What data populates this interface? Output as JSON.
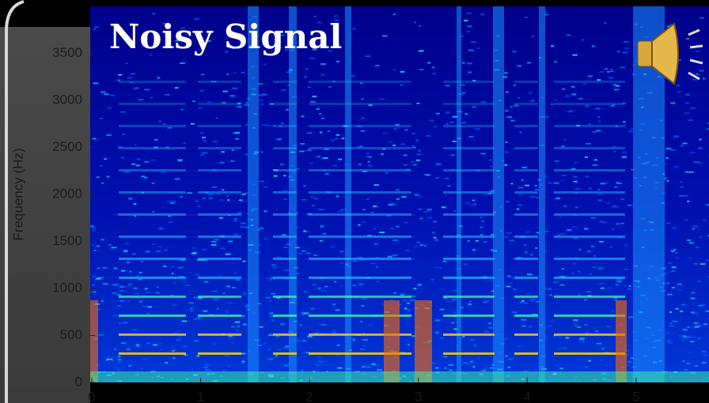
{
  "chart_data": {
    "type": "spectrogram",
    "title": "Noisy Signal",
    "y_label": "Frequency (Hz)",
    "xlim": [
      0,
      5.67
    ],
    "xticks": [
      0,
      1,
      2,
      3,
      4,
      5
    ],
    "ylim": [
      0,
      4000
    ],
    "yticks": [
      0,
      500,
      1000,
      1500,
      2000,
      2500,
      3000,
      3500
    ]
  }
}
